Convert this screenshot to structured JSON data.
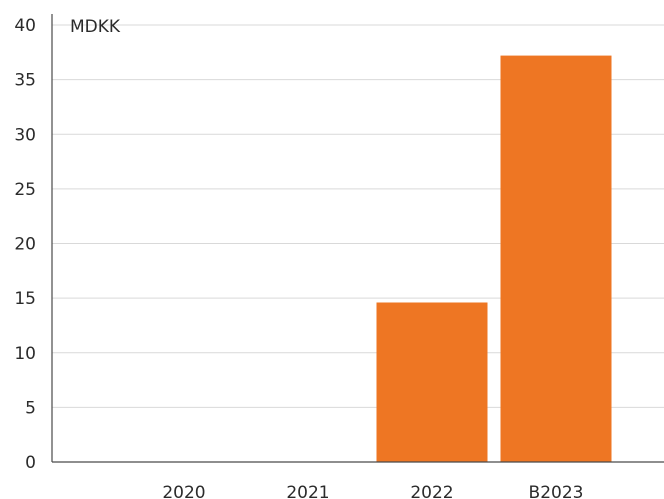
{
  "chart_data": {
    "type": "bar",
    "unit_label": "MDKK",
    "categories": [
      "2020",
      "2021",
      "2022",
      "B2023"
    ],
    "values": [
      0,
      0,
      14.6,
      37.2
    ],
    "ylim": [
      0,
      40
    ],
    "yticks": [
      0,
      5,
      10,
      15,
      20,
      25,
      30,
      35,
      40
    ],
    "grid": true,
    "bar_color": "#ee7623"
  }
}
